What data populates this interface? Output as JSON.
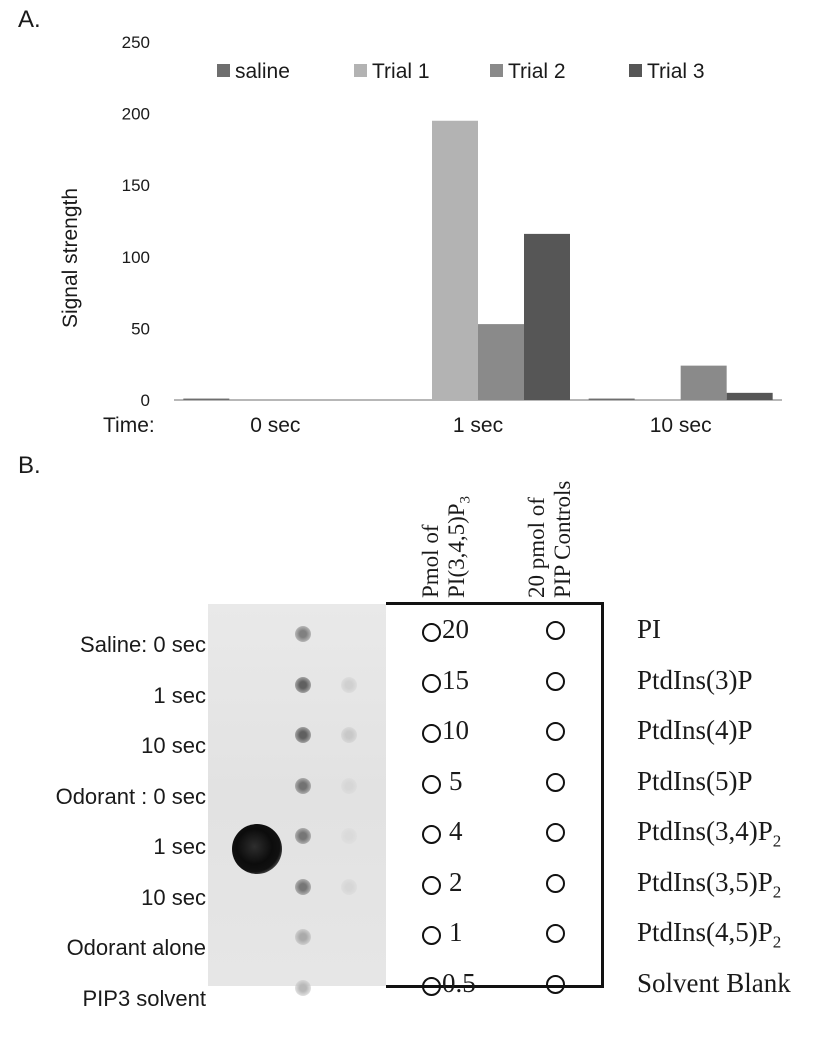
{
  "panel_a_label": "A.",
  "panel_b_label": "B.",
  "chart_data": {
    "type": "bar",
    "categories": [
      "0 sec",
      "1 sec",
      "10 sec"
    ],
    "category_axis_prefix": "Time:",
    "ylabel": "Signal strength",
    "ylim": [
      0,
      250
    ],
    "yticks": [
      "0",
      "50",
      "100",
      "150",
      "200",
      "250"
    ],
    "legend_position": "top",
    "series": [
      {
        "name": "saline",
        "color": "#6e6e6e",
        "values": [
          1,
          0,
          1
        ]
      },
      {
        "name": "Trial 1",
        "color": "#b3b3b3",
        "values": [
          0,
          195,
          0
        ]
      },
      {
        "name": "Trial 2",
        "color": "#8a8a8a",
        "values": [
          0,
          53,
          24
        ]
      },
      {
        "name": "Trial 3",
        "color": "#565656",
        "values": [
          0,
          116,
          5
        ]
      }
    ]
  },
  "blot": {
    "column_headers": {
      "pmol_line1": "Pmol  of",
      "pmol_line2_pre": "PI(3,4,5)P",
      "pmol_line2_sub": "3",
      "controls_line1": "20 pmol of",
      "controls_line2": "PIP Controls"
    },
    "sample_labels": [
      "Saline: 0 sec",
      "1 sec",
      "10 sec",
      "Odorant : 0 sec",
      "1 sec",
      "10 sec",
      "Odorant alone",
      "PIP3 solvent"
    ],
    "pmol_amounts": [
      "20",
      "15",
      "10",
      "5",
      "4",
      "2",
      "1",
      "0.5"
    ],
    "control_lipids": [
      {
        "name": "PI",
        "sub": ""
      },
      {
        "name": "PtdIns(3)P",
        "sub": ""
      },
      {
        "name": "PtdIns(4)P",
        "sub": ""
      },
      {
        "name": "PtdIns(5)P",
        "sub": ""
      },
      {
        "name": "PtdIns(3,4)P",
        "sub": "2"
      },
      {
        "name": "PtdIns(3,5)P",
        "sub": "2"
      },
      {
        "name": "PtdIns(4,5)P",
        "sub": "2"
      },
      {
        "name": "Solvent Blank",
        "sub": ""
      }
    ]
  }
}
